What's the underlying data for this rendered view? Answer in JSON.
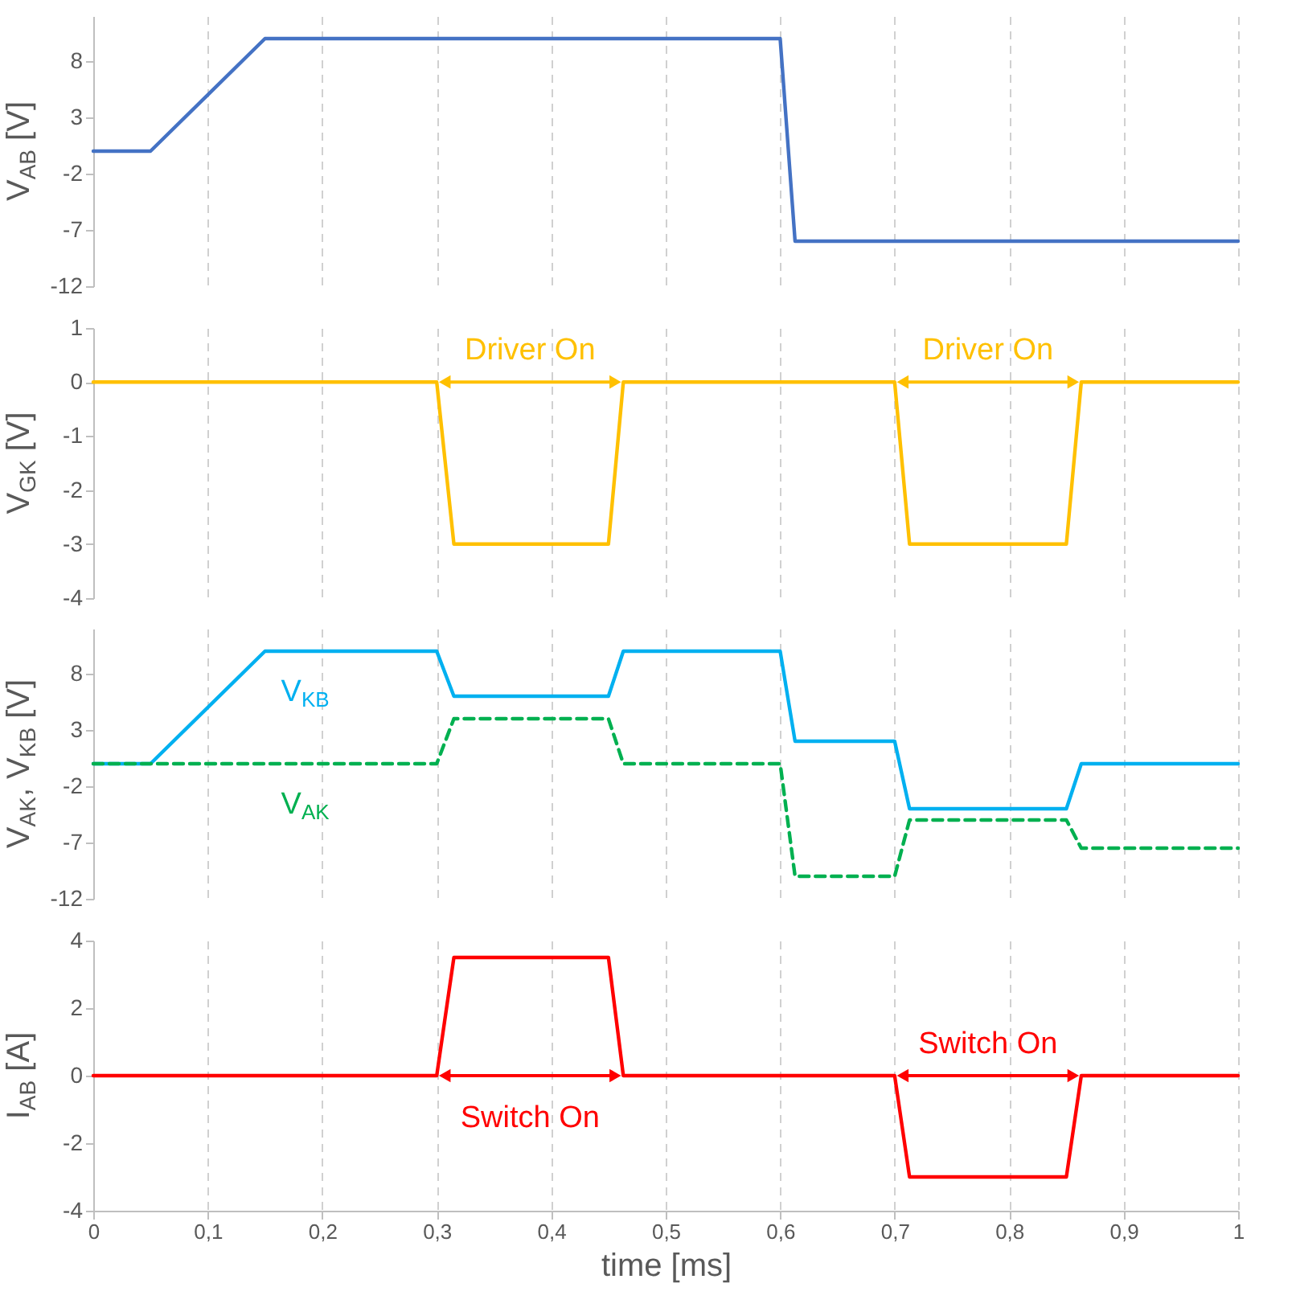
{
  "chart_data": [
    {
      "type": "line",
      "ylabel": "V$_{AB}$ [V]",
      "xlim": [
        0,
        1
      ],
      "ylim": [
        -12,
        12
      ],
      "yticks": [
        -12,
        -7,
        -2,
        3,
        8
      ],
      "grid": "x",
      "tick_labels": "y",
      "series": [
        {
          "color": "#4472c4",
          "line_style": "solid",
          "x": [
            0,
            0.05,
            0.15,
            0.6,
            0.613,
            1
          ],
          "values": [
            0,
            0,
            10,
            10,
            -8,
            -8
          ]
        }
      ]
    },
    {
      "type": "line",
      "ylabel": "V$_{GK}$ [V]",
      "xlim": [
        0,
        1
      ],
      "ylim": [
        -4,
        1
      ],
      "yticks": [
        -4,
        -3,
        -2,
        -1,
        0,
        1
      ],
      "grid": "x",
      "tick_labels": "y",
      "series": [
        {
          "color": "#ffc000",
          "line_style": "solid",
          "x": [
            0,
            0.3,
            0.315,
            0.45,
            0.463,
            0.7,
            0.713,
            0.85,
            0.863,
            1
          ],
          "values": [
            0,
            0,
            -3,
            -3,
            0,
            0,
            -3,
            -3,
            0,
            0
          ]
        }
      ],
      "annotations": [
        "Driver On",
        "Driver On"
      ]
    },
    {
      "type": "line",
      "ylabel": "V$_{AK}$, V$_{KB}$ [V]",
      "xlim": [
        0,
        1
      ],
      "ylim": [
        -12,
        12
      ],
      "yticks": [
        -12,
        -7,
        -2,
        3,
        8
      ],
      "grid": "x",
      "tick_labels": "y",
      "series": [
        {
          "name": "V$_{KB}$",
          "color": "#00b0f0",
          "line_style": "solid",
          "x": [
            0,
            0.05,
            0.15,
            0.3,
            0.315,
            0.45,
            0.463,
            0.6,
            0.613,
            0.7,
            0.713,
            0.85,
            0.863,
            1
          ],
          "values": [
            0,
            0,
            10,
            10,
            6,
            6,
            10,
            10,
            2,
            2,
            -4,
            -4,
            0,
            0
          ]
        },
        {
          "name": "V$_{AK}$",
          "color": "#00b050",
          "line_style": "dashed",
          "x": [
            0,
            0.05,
            0.15,
            0.3,
            0.315,
            0.45,
            0.463,
            0.6,
            0.613,
            0.7,
            0.713,
            0.85,
            0.863,
            1
          ],
          "values": [
            0,
            0,
            0,
            0,
            4,
            4,
            0,
            0,
            -10,
            -10,
            -5,
            -5,
            -7.5,
            -7.5
          ]
        }
      ]
    },
    {
      "type": "line",
      "ylabel": "I$_{AB}$ [A]",
      "xlabel": "time [ms]",
      "xlim": [
        0,
        1
      ],
      "xticks": [
        0,
        {
          "value": 0.1,
          "label": "0,1"
        },
        {
          "value": 0.2,
          "label": "0,2"
        },
        {
          "value": 0.3,
          "label": "0,3"
        },
        {
          "value": 0.4,
          "label": "0,4"
        },
        {
          "value": 0.5,
          "label": "0,5"
        },
        {
          "value": 0.6,
          "label": "0,6"
        },
        {
          "value": 0.7,
          "label": "0,7"
        },
        {
          "value": 0.8,
          "label": "0,8"
        },
        {
          "value": 0.9,
          "label": "0,9"
        },
        1
      ],
      "ylim": [
        -4,
        4
      ],
      "yticks": [
        -4,
        -2,
        0,
        2,
        4
      ],
      "grid": "x",
      "series": [
        {
          "color": "#ff0000",
          "line_style": "solid",
          "x": [
            0,
            0.3,
            0.315,
            0.45,
            0.463,
            0.7,
            0.713,
            0.85,
            0.863,
            1
          ],
          "values": [
            0,
            0,
            3.5,
            3.5,
            0,
            0,
            -3,
            -3,
            0,
            0
          ]
        }
      ],
      "annotations": [
        "Switch On",
        "Switch On"
      ]
    }
  ]
}
